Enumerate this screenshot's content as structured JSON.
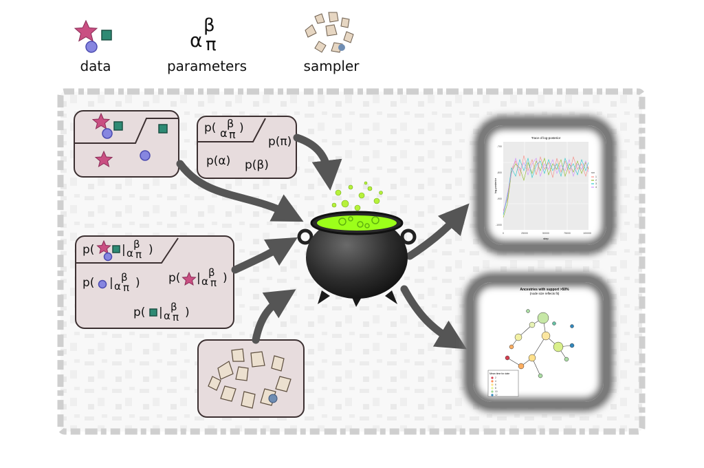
{
  "legend": {
    "data_label": "data",
    "parameters_label": "parameters",
    "sampler_label": "sampler"
  },
  "symbols": {
    "alpha": "α",
    "beta": "β",
    "pi": "π"
  },
  "prior_panel": {
    "header_p": "p(",
    "header_close": ")",
    "p_pi": "p(π)",
    "p_alpha": "p(α)",
    "p_beta": "p(β)"
  },
  "likelihood_panel": {
    "header_p": "p(",
    "header_bar": "|",
    "close": ")",
    "p_open": "p(",
    "bar": "|"
  },
  "trace_plot": {
    "title": "Trace of log-posterior",
    "y_axis_label": "log-posterior",
    "x_axis_label": "step",
    "x_ticks": [
      "0",
      "25000",
      "50000",
      "75000",
      "100000"
    ],
    "y_ticks": [
      "-700",
      "-800",
      "-900",
      "-1000"
    ],
    "legend_title": "run",
    "legend_items": [
      "1",
      "2",
      "3",
      "4"
    ]
  },
  "tree_plot": {
    "title_line1": "Ancestries with support >50%",
    "title_line2": "(node size reflects fit)",
    "legend_title": "Mean time for date",
    "legend_items": [
      "2",
      "4",
      "6",
      "8",
      "10",
      "12"
    ]
  },
  "colors": {
    "star": "#c94f82",
    "square": "#2e8a74",
    "circle": "#8686e0",
    "panel_bg": "#e7dcdd",
    "arrow": "#555555",
    "potion": "#9cff1a"
  }
}
